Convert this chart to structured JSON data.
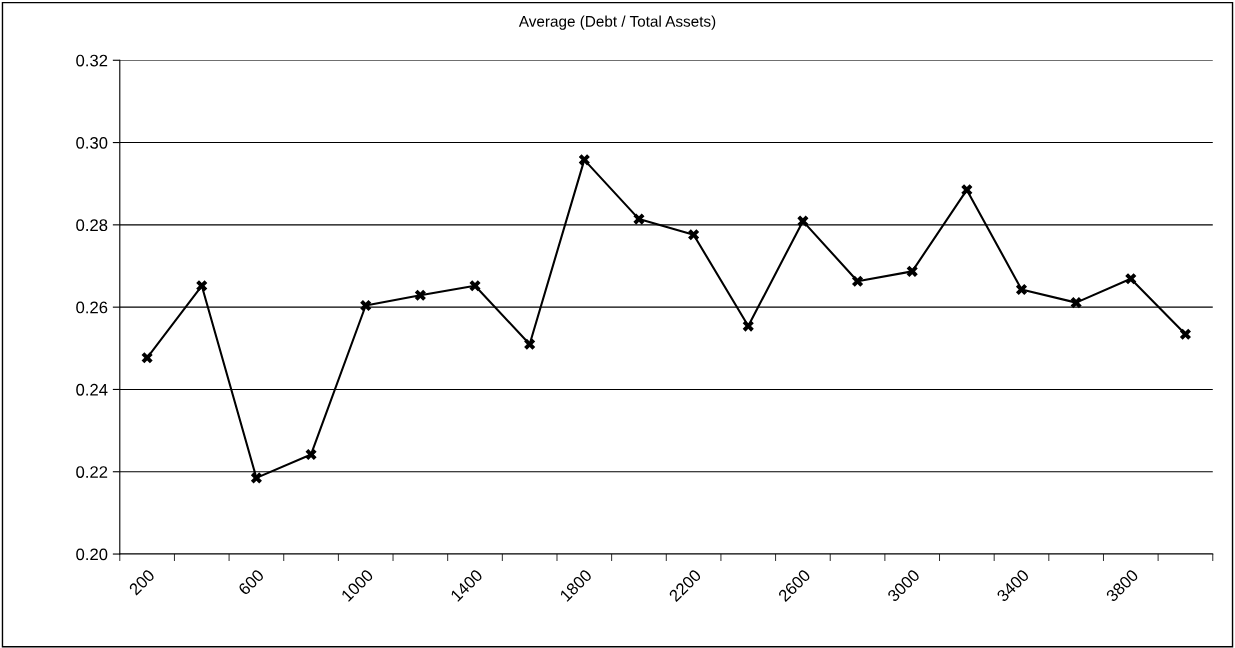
{
  "chart_data": {
    "type": "line",
    "title": "Average (Debt / Total Assets)",
    "categories": [
      "200",
      null,
      "600",
      null,
      "1000",
      null,
      "1400",
      null,
      "1800",
      null,
      "2200",
      null,
      "2600",
      null,
      "3000",
      null,
      "3400",
      null,
      "3800",
      null
    ],
    "series": [
      {
        "color": "#000000",
        "values": [
          0.2477,
          0.2652,
          0.2185,
          0.2242,
          0.2604,
          0.2629,
          0.2652,
          0.251,
          0.2958,
          0.2814,
          0.2776,
          0.2554,
          0.2809,
          0.2663,
          0.2687,
          0.2885,
          0.2643,
          0.2611,
          0.2669,
          0.2534
        ]
      }
    ],
    "ylim": [
      0.2,
      0.32
    ],
    "yticks": [
      {
        "value": 0.2,
        "label": "0.20"
      },
      {
        "value": 0.22,
        "label": "0.22"
      },
      {
        "value": 0.24,
        "label": "0.24"
      },
      {
        "value": 0.26,
        "label": "0.26"
      },
      {
        "value": 0.28,
        "label": "0.28"
      },
      {
        "value": 0.3,
        "label": "0.30"
      },
      {
        "value": 0.32,
        "label": "0.32"
      }
    ],
    "grid": "y",
    "legend": false,
    "marker": "cross",
    "line_style": "solid"
  }
}
